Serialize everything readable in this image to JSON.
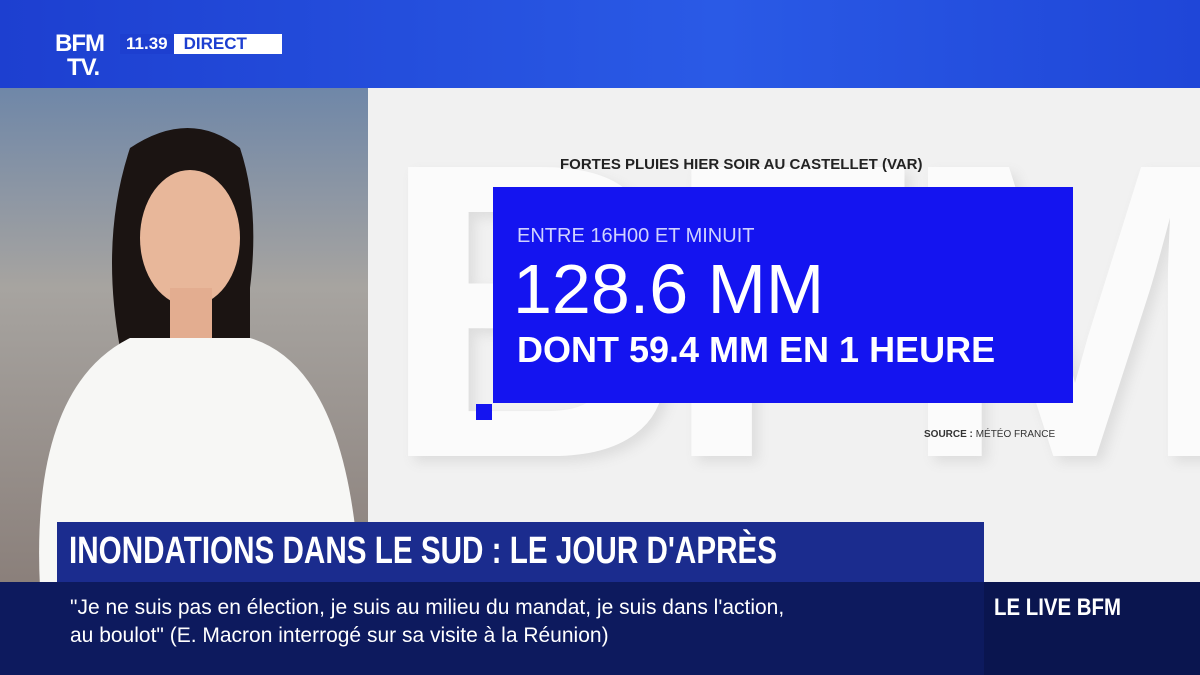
{
  "logo": {
    "line1": "BFM",
    "line2": "TV."
  },
  "status": {
    "time": "11.39",
    "label": "DIRECT"
  },
  "graphic": {
    "title": "FORTES PLUIES HIER SOIR AU CASTELLET (VAR)",
    "period": "ENTRE 16H00 ET MINUIT",
    "total": "128.6 MM",
    "detail": "DONT 59.4 MM EN 1 HEURE",
    "source_label": "SOURCE :",
    "source": "MÉTÉO FRANCE"
  },
  "headline": "INONDATIONS DANS LE SUD : LE JOUR D'APRÈS",
  "ticker": {
    "lines": [
      "\"Je ne suis pas en élection, je suis au milieu du mandat, je suis dans l'action,",
      "au boulot\" (E. Macron interrogé sur sa visite à la Réunion)"
    ],
    "brand": "LE LIVE BFM"
  }
}
